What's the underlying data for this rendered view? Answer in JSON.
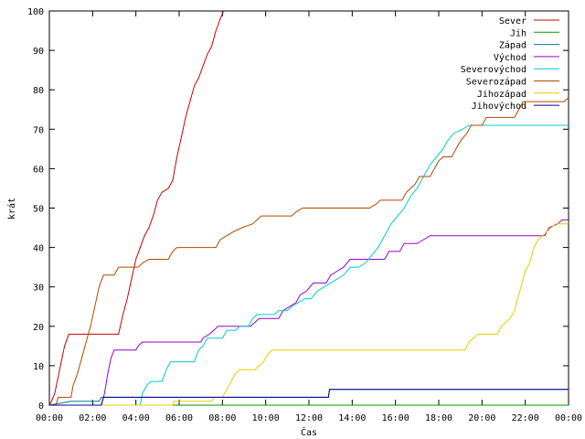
{
  "chart_data": {
    "type": "line",
    "title": "",
    "xlabel": "Čas",
    "ylabel": "krát",
    "xlim": [
      0,
      24
    ],
    "ylim": [
      0,
      100
    ],
    "x_ticks": [
      0,
      2,
      4,
      6,
      8,
      10,
      12,
      14,
      16,
      18,
      20,
      22,
      24
    ],
    "x_tick_labels": [
      "00:00",
      "02:00",
      "04:00",
      "06:00",
      "08:00",
      "10:00",
      "12:00",
      "14:00",
      "16:00",
      "18:00",
      "20:00",
      "22:00",
      "00:00"
    ],
    "y_ticks": [
      0,
      10,
      20,
      30,
      40,
      50,
      60,
      70,
      80,
      90,
      100
    ],
    "y_tick_labels": [
      "0",
      "10",
      "20",
      "30",
      "40",
      "50",
      "60",
      "70",
      "80",
      "90",
      "100"
    ],
    "grid": false,
    "legend_position": "top-right",
    "series": [
      {
        "name": "Sever",
        "color": "#cc0000",
        "points": [
          [
            0,
            0
          ],
          [
            0.1,
            1
          ],
          [
            0.25,
            3
          ],
          [
            0.4,
            7
          ],
          [
            0.55,
            11
          ],
          [
            0.7,
            15
          ],
          [
            0.9,
            18
          ],
          [
            3.2,
            18
          ],
          [
            3.4,
            23
          ],
          [
            3.6,
            27
          ],
          [
            3.8,
            32
          ],
          [
            4.0,
            37
          ],
          [
            4.2,
            40
          ],
          [
            4.4,
            43
          ],
          [
            4.6,
            45
          ],
          [
            4.8,
            48
          ],
          [
            5.0,
            52
          ],
          [
            5.2,
            54
          ],
          [
            5.5,
            55
          ],
          [
            5.7,
            57
          ],
          [
            5.9,
            63
          ],
          [
            6.1,
            68
          ],
          [
            6.3,
            73
          ],
          [
            6.5,
            77
          ],
          [
            6.7,
            81
          ],
          [
            6.9,
            83
          ],
          [
            7.1,
            86
          ],
          [
            7.3,
            89
          ],
          [
            7.5,
            91
          ],
          [
            7.7,
            95
          ],
          [
            7.9,
            98
          ],
          [
            8.05,
            100
          ]
        ]
      },
      {
        "name": "Jih",
        "color": "#009900",
        "points": [
          [
            0,
            0
          ],
          [
            24,
            0
          ]
        ]
      },
      {
        "name": "Západ",
        "color": "#008080",
        "points": [
          [
            0,
            0
          ],
          [
            1.0,
            1
          ],
          [
            2.3,
            1
          ],
          [
            2.4,
            2
          ],
          [
            12.9,
            2
          ],
          [
            12.95,
            4
          ],
          [
            24,
            4
          ]
        ]
      },
      {
        "name": "Východ",
        "color": "#9900cc",
        "points": [
          [
            0,
            0
          ],
          [
            2.4,
            0
          ],
          [
            2.55,
            3
          ],
          [
            2.7,
            8
          ],
          [
            2.85,
            12
          ],
          [
            3.0,
            14
          ],
          [
            4.0,
            14
          ],
          [
            4.1,
            15
          ],
          [
            4.3,
            16
          ],
          [
            7.0,
            16
          ],
          [
            7.1,
            17
          ],
          [
            7.4,
            18
          ],
          [
            7.6,
            19
          ],
          [
            7.8,
            20
          ],
          [
            9.3,
            20
          ],
          [
            9.5,
            21
          ],
          [
            9.7,
            22
          ],
          [
            10.6,
            22
          ],
          [
            10.8,
            24
          ],
          [
            11.1,
            25
          ],
          [
            11.4,
            26
          ],
          [
            11.6,
            28
          ],
          [
            11.9,
            29
          ],
          [
            12.2,
            31
          ],
          [
            12.8,
            31
          ],
          [
            13.0,
            33
          ],
          [
            13.3,
            34
          ],
          [
            13.6,
            35
          ],
          [
            13.9,
            37
          ],
          [
            15.5,
            37
          ],
          [
            15.7,
            39
          ],
          [
            16.2,
            39
          ],
          [
            16.4,
            41
          ],
          [
            17.0,
            41
          ],
          [
            17.3,
            42
          ],
          [
            17.6,
            43
          ],
          [
            22.9,
            43
          ],
          [
            23.1,
            45
          ],
          [
            23.5,
            46
          ],
          [
            23.7,
            47
          ],
          [
            24,
            47
          ]
        ]
      },
      {
        "name": "Severovýchod",
        "color": "#00cccc",
        "points": [
          [
            0,
            0
          ],
          [
            4.2,
            0
          ],
          [
            4.3,
            3
          ],
          [
            4.5,
            5
          ],
          [
            4.7,
            6
          ],
          [
            5.2,
            6
          ],
          [
            5.4,
            9
          ],
          [
            5.6,
            11
          ],
          [
            6.7,
            11
          ],
          [
            6.9,
            14
          ],
          [
            7.1,
            15
          ],
          [
            7.3,
            17
          ],
          [
            8.0,
            17
          ],
          [
            8.2,
            19
          ],
          [
            8.6,
            19
          ],
          [
            8.8,
            20
          ],
          [
            9.2,
            20
          ],
          [
            9.4,
            22
          ],
          [
            9.6,
            23
          ],
          [
            10.4,
            23
          ],
          [
            10.6,
            24
          ],
          [
            11.0,
            24
          ],
          [
            11.2,
            25
          ],
          [
            11.5,
            26
          ],
          [
            11.8,
            27
          ],
          [
            12.1,
            27
          ],
          [
            12.4,
            29
          ],
          [
            12.7,
            30
          ],
          [
            13.0,
            31
          ],
          [
            13.3,
            32
          ],
          [
            13.6,
            33
          ],
          [
            13.9,
            35
          ],
          [
            14.3,
            35
          ],
          [
            14.6,
            36
          ],
          [
            14.9,
            38
          ],
          [
            15.2,
            40
          ],
          [
            15.5,
            43
          ],
          [
            15.8,
            46
          ],
          [
            16.1,
            48
          ],
          [
            16.4,
            50
          ],
          [
            16.7,
            53
          ],
          [
            17.0,
            55
          ],
          [
            17.3,
            58
          ],
          [
            17.6,
            61
          ],
          [
            17.9,
            63
          ],
          [
            18.2,
            65
          ],
          [
            18.4,
            67
          ],
          [
            18.7,
            69
          ],
          [
            19.1,
            70
          ],
          [
            19.4,
            71
          ],
          [
            24,
            71
          ]
        ]
      },
      {
        "name": "Severozápad",
        "color": "#b34700",
        "points": [
          [
            0,
            0
          ],
          [
            0.3,
            0
          ],
          [
            0.4,
            2
          ],
          [
            1.0,
            2
          ],
          [
            1.1,
            5
          ],
          [
            1.3,
            8
          ],
          [
            1.5,
            12
          ],
          [
            1.7,
            16
          ],
          [
            1.9,
            20
          ],
          [
            2.1,
            25
          ],
          [
            2.3,
            30
          ],
          [
            2.5,
            33
          ],
          [
            3.0,
            33
          ],
          [
            3.2,
            35
          ],
          [
            4.1,
            35
          ],
          [
            4.3,
            36
          ],
          [
            4.6,
            37
          ],
          [
            5.5,
            37
          ],
          [
            5.7,
            39
          ],
          [
            5.9,
            40
          ],
          [
            7.7,
            40
          ],
          [
            7.9,
            42
          ],
          [
            8.2,
            43
          ],
          [
            8.5,
            44
          ],
          [
            8.9,
            45
          ],
          [
            9.4,
            46
          ],
          [
            9.6,
            47
          ],
          [
            9.8,
            48
          ],
          [
            11.2,
            48
          ],
          [
            11.4,
            49
          ],
          [
            11.7,
            50
          ],
          [
            14.8,
            50
          ],
          [
            15.1,
            51
          ],
          [
            15.3,
            52
          ],
          [
            16.3,
            52
          ],
          [
            16.5,
            54
          ],
          [
            16.7,
            55
          ],
          [
            16.9,
            56
          ],
          [
            17.1,
            58
          ],
          [
            17.6,
            58
          ],
          [
            17.8,
            60
          ],
          [
            18.0,
            62
          ],
          [
            18.2,
            63
          ],
          [
            18.6,
            63
          ],
          [
            18.8,
            65
          ],
          [
            19.0,
            67
          ],
          [
            19.3,
            69
          ],
          [
            19.5,
            71
          ],
          [
            20.0,
            71
          ],
          [
            20.2,
            73
          ],
          [
            21.5,
            73
          ],
          [
            21.7,
            75
          ],
          [
            21.9,
            77
          ],
          [
            23.8,
            77
          ],
          [
            24,
            78
          ]
        ]
      },
      {
        "name": "Jihozápad",
        "color": "#e6cc00",
        "points": [
          [
            0,
            0
          ],
          [
            5.7,
            0
          ],
          [
            5.75,
            1
          ],
          [
            7.5,
            1
          ],
          [
            7.6,
            2
          ],
          [
            8.0,
            2
          ],
          [
            8.2,
            4
          ],
          [
            8.4,
            6
          ],
          [
            8.6,
            8
          ],
          [
            8.8,
            9
          ],
          [
            9.5,
            9
          ],
          [
            9.7,
            10
          ],
          [
            9.9,
            11
          ],
          [
            10.1,
            13
          ],
          [
            10.3,
            14
          ],
          [
            19.2,
            14
          ],
          [
            19.4,
            16
          ],
          [
            19.6,
            17
          ],
          [
            19.8,
            18
          ],
          [
            20.7,
            18
          ],
          [
            20.9,
            20
          ],
          [
            21.1,
            21
          ],
          [
            21.3,
            22
          ],
          [
            21.5,
            24
          ],
          [
            21.6,
            26
          ],
          [
            21.7,
            28
          ],
          [
            21.8,
            30
          ],
          [
            21.9,
            32
          ],
          [
            22.0,
            34
          ],
          [
            22.2,
            36
          ],
          [
            22.4,
            40
          ],
          [
            22.6,
            42
          ],
          [
            22.8,
            43
          ],
          [
            23.0,
            44
          ],
          [
            23.2,
            45
          ],
          [
            23.4,
            46
          ],
          [
            24,
            46
          ]
        ]
      },
      {
        "name": "Jihovýchod",
        "color": "#000099",
        "points": [
          [
            0,
            0
          ],
          [
            1.0,
            0
          ],
          [
            2.4,
            0
          ],
          [
            2.5,
            2
          ],
          [
            12.9,
            2
          ],
          [
            12.95,
            4
          ],
          [
            24,
            4
          ]
        ]
      }
    ]
  }
}
